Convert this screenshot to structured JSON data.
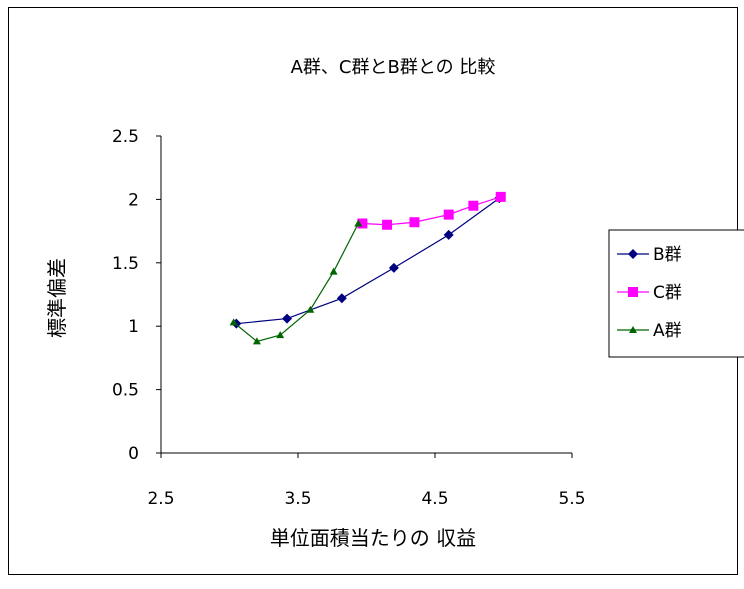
{
  "chart_data": {
    "type": "line",
    "title": "A群、C群とB群との 比較",
    "xlabel": "単位面積当たりの 収益",
    "ylabel": "標準偏差",
    "xlim": [
      2.5,
      5.5
    ],
    "ylim": [
      0,
      2.5
    ],
    "xticks": [
      "2.5",
      "3.5",
      "4.5",
      "5.5"
    ],
    "yticks": [
      "0",
      "0.5",
      "1",
      "1.5",
      "2",
      "2.5"
    ],
    "grid": false,
    "legend_position": "right",
    "series": [
      {
        "name": "B群",
        "color": "#000080",
        "marker": "diamond",
        "x": [
          3.05,
          3.42,
          3.82,
          4.2,
          4.6,
          4.97
        ],
        "y": [
          1.02,
          1.06,
          1.22,
          1.46,
          1.72,
          2.01
        ]
      },
      {
        "name": "C群",
        "color": "#ff00ff",
        "marker": "square",
        "x": [
          3.97,
          4.15,
          4.35,
          4.6,
          4.78,
          4.98
        ],
        "y": [
          1.81,
          1.8,
          1.82,
          1.88,
          1.95,
          2.02
        ]
      },
      {
        "name": "A群",
        "color": "#006400",
        "marker": "triangle",
        "x": [
          3.03,
          3.2,
          3.37,
          3.59,
          3.76,
          3.94
        ],
        "y": [
          1.03,
          0.88,
          0.93,
          1.13,
          1.43,
          1.81
        ]
      }
    ]
  }
}
